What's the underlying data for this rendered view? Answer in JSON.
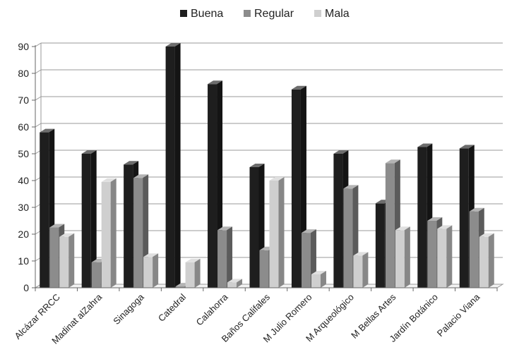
{
  "chart_data": {
    "type": "bar",
    "title": "",
    "xlabel": "",
    "ylabel": "",
    "ylim": [
      0,
      90
    ],
    "yticks": [
      0,
      10,
      20,
      30,
      40,
      50,
      60,
      70,
      80,
      90
    ],
    "grid": true,
    "legend_position": "top-center",
    "style": "3d-clustered-column",
    "categories": [
      "Alcázar RRCC",
      "Madinat alZahra",
      "Sinagoga",
      "Catedral",
      "Calahorra",
      "Baños Califales",
      "M Julio Romero",
      "M Arqueológico",
      "M Bellas Artes",
      "Jardín Botánico",
      "Palacio Viana"
    ],
    "series": [
      {
        "name": "Buena",
        "color": "#1e1e1e",
        "values": [
          58,
          50,
          46,
          90,
          76,
          45,
          74,
          50,
          31.5,
          52.5,
          52
        ]
      },
      {
        "name": "Regular",
        "color": "#8c8c8c",
        "values": [
          22.5,
          9.5,
          41,
          0.5,
          21.5,
          14,
          20.5,
          37,
          46.5,
          25,
          28.5
        ]
      },
      {
        "name": "Mala",
        "color": "#cfcfcf",
        "values": [
          19,
          39.5,
          11.5,
          9.5,
          2,
          40,
          5,
          12,
          21.5,
          22,
          19
        ]
      }
    ]
  }
}
